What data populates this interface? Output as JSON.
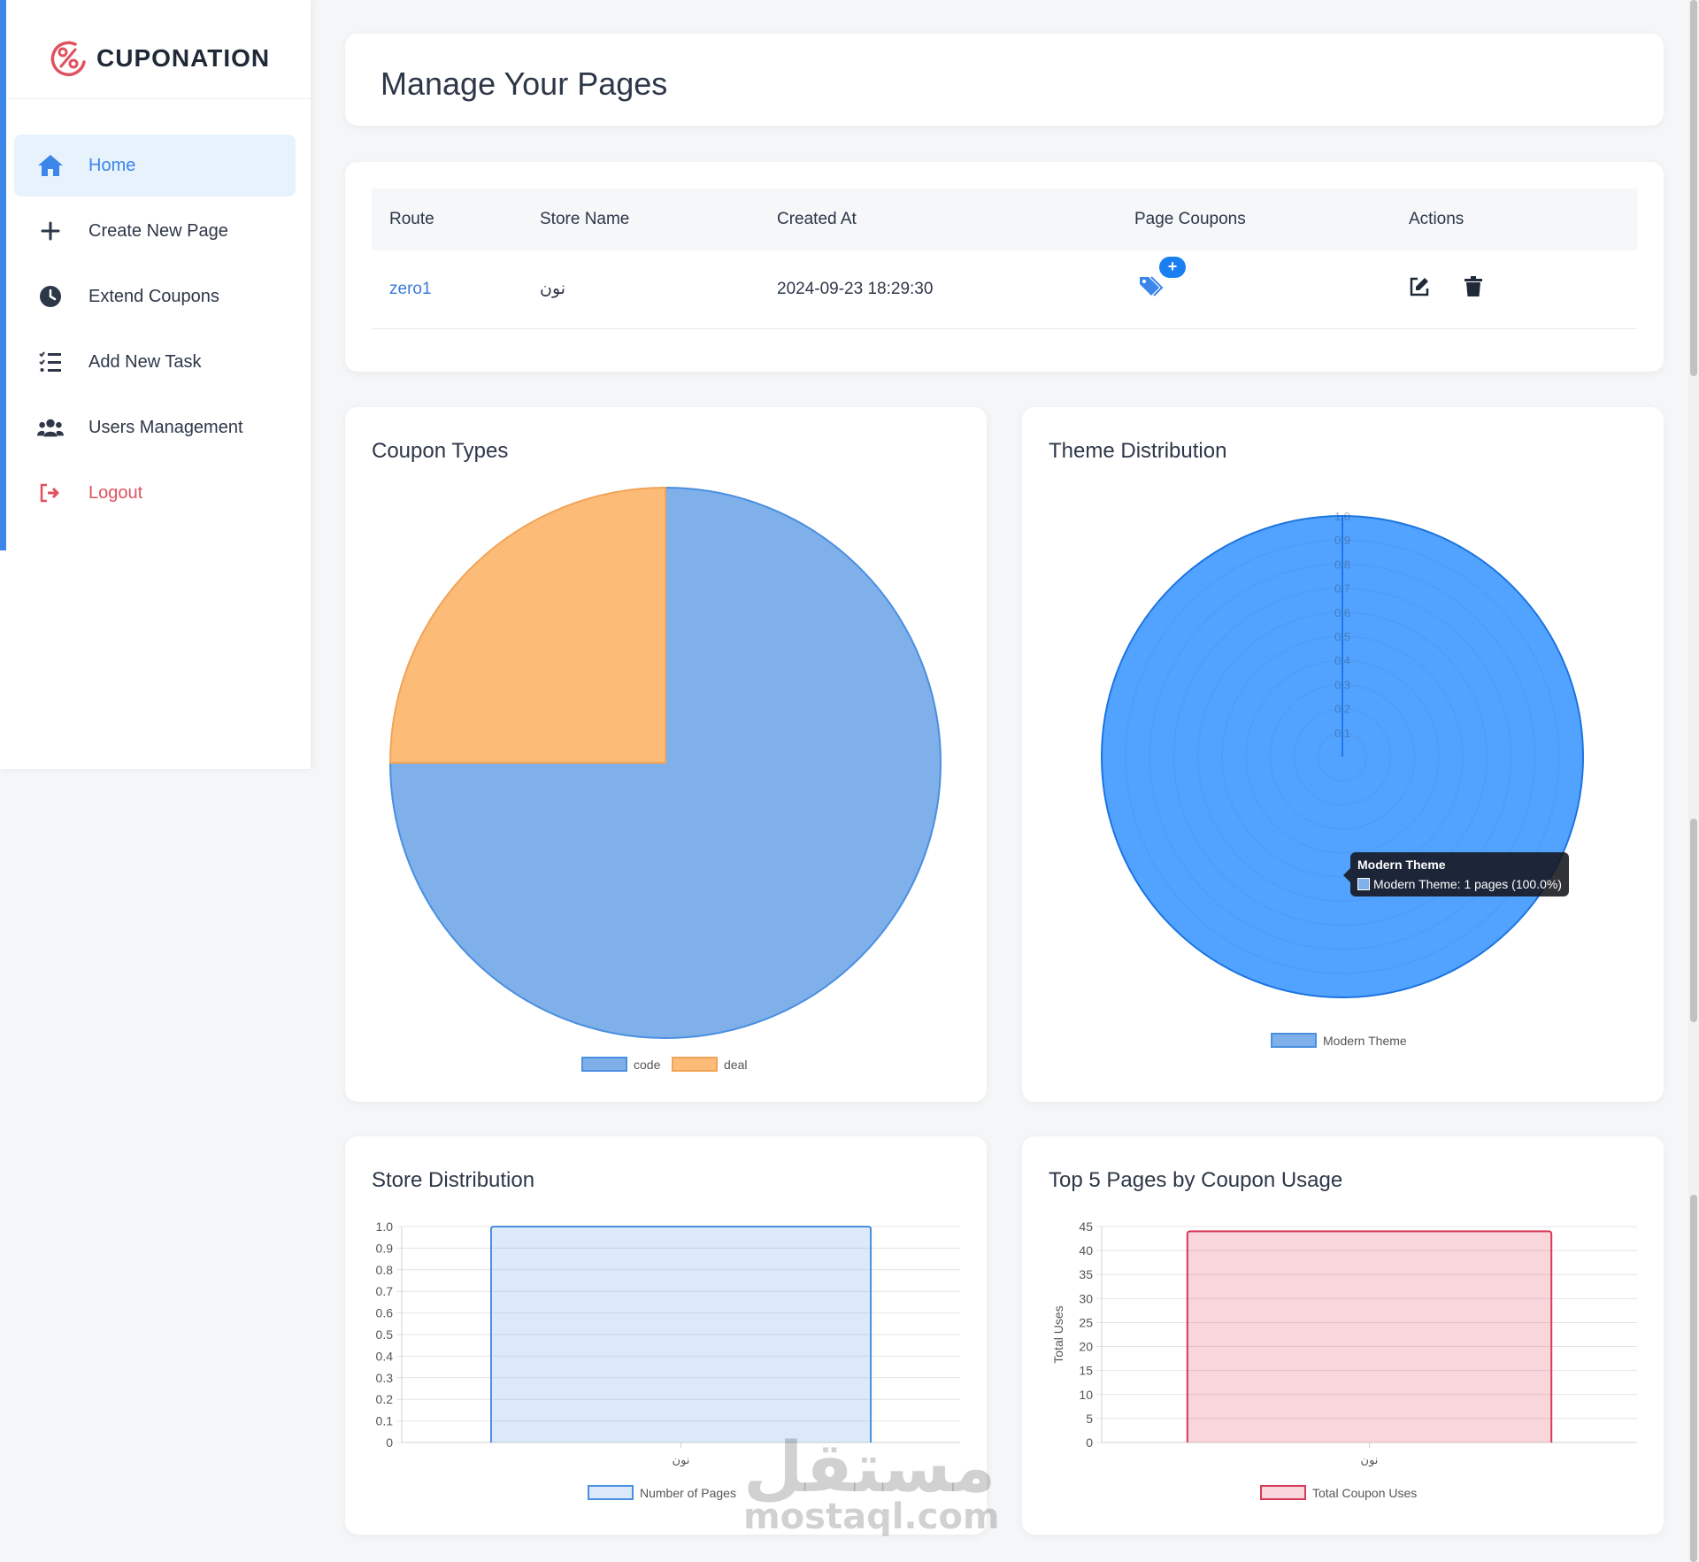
{
  "brand": {
    "name": "CUPONATION"
  },
  "sidebar": {
    "items": [
      {
        "label": "Home",
        "icon": "home-icon",
        "active": true
      },
      {
        "label": "Create New Page",
        "icon": "plus-icon"
      },
      {
        "label": "Extend Coupons",
        "icon": "clock-icon"
      },
      {
        "label": "Add New Task",
        "icon": "tasks-icon"
      },
      {
        "label": "Users Management",
        "icon": "users-icon"
      },
      {
        "label": "Logout",
        "icon": "logout-icon"
      }
    ]
  },
  "header": {
    "title": "Manage Your Pages"
  },
  "table": {
    "columns": [
      "Route",
      "Store Name",
      "Created At",
      "Page Coupons",
      "Actions"
    ],
    "rows": [
      {
        "route": "zero1",
        "store": "نون",
        "created_at": "2024-09-23 18:29:30",
        "add_label": "+"
      }
    ]
  },
  "charts": {
    "coupon_types": {
      "title": "Coupon Types"
    },
    "theme_distribution": {
      "title": "Theme Distribution"
    },
    "store_distribution": {
      "title": "Store Distribution"
    },
    "top_pages": {
      "title": "Top 5 Pages by Coupon Usage"
    }
  },
  "tooltip": {
    "title": "Modern Theme",
    "text": "Modern Theme: 1 pages (100.0%)"
  },
  "watermark": {
    "ar": "مستقل",
    "en": "mostaql.com"
  },
  "colors": {
    "accent": "#3b86e8",
    "logout": "#e05260",
    "pink": "#e5415f"
  },
  "chart_data": [
    {
      "type": "pie",
      "title": "Coupon Types",
      "categories": [
        "code",
        "deal"
      ],
      "values": [
        75,
        25
      ],
      "colors": [
        "#7fb0ea",
        "#fdbb78"
      ],
      "legend": "bottom"
    },
    {
      "type": "polarArea",
      "title": "Theme Distribution",
      "categories": [
        "Modern Theme"
      ],
      "values": [
        1
      ],
      "rlim": [
        0,
        1.0
      ],
      "ticks": [
        "0.1",
        "0.2",
        "0.3",
        "0.4",
        "0.5",
        "0.6",
        "0.7",
        "0.8",
        "0.9",
        "1.0"
      ],
      "legend": "bottom"
    },
    {
      "type": "bar",
      "title": "Store Distribution",
      "categories": [
        "نون"
      ],
      "series": [
        {
          "name": "Number of Pages",
          "values": [
            1
          ]
        }
      ],
      "ylim": [
        0,
        1.0
      ],
      "yticks": [
        "0",
        "0.1",
        "0.2",
        "0.3",
        "0.4",
        "0.5",
        "0.6",
        "0.7",
        "0.8",
        "0.9",
        "1.0"
      ],
      "legend": "bottom",
      "grid": true
    },
    {
      "type": "bar",
      "title": "Top 5 Pages by Coupon Usage",
      "categories": [
        "نون"
      ],
      "series": [
        {
          "name": "Total Coupon Uses",
          "values": [
            44
          ]
        }
      ],
      "ylabel": "Total Uses",
      "ylim": [
        0,
        45
      ],
      "yticks": [
        "0",
        "5",
        "10",
        "15",
        "20",
        "25",
        "30",
        "35",
        "40",
        "45"
      ],
      "legend": "bottom",
      "grid": true
    }
  ]
}
